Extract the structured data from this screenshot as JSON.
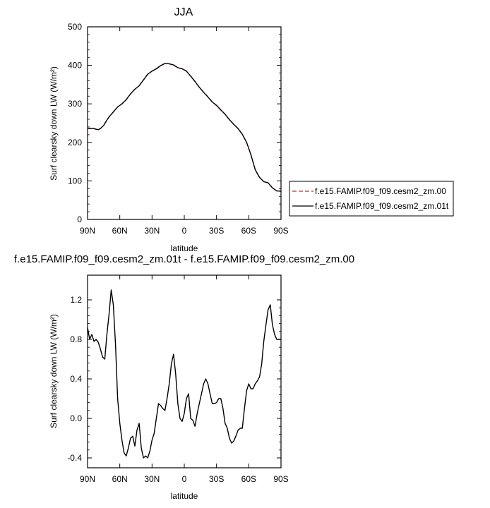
{
  "chart_data": [
    {
      "type": "line",
      "title": "JJA",
      "xlabel": "latitude",
      "ylabel": "Surf clearsky down LW (W/m²)",
      "xlim": [
        90,
        -90
      ],
      "ylim": [
        0,
        500
      ],
      "x_tick_values": [
        90,
        60,
        30,
        0,
        -30,
        -60,
        -90
      ],
      "x_tick_labels": [
        "90N",
        "60N",
        "30N",
        "0",
        "30S",
        "60S",
        "90S"
      ],
      "y_tick_values": [
        0,
        100,
        200,
        300,
        400,
        500
      ],
      "y_tick_labels": [
        "0",
        "100",
        "200",
        "300",
        "400",
        "500"
      ],
      "legend_position": "right",
      "series": [
        {
          "name": "f.e15.FAMIP.f09_f09.cesm2_zm.00",
          "color": "#d62728",
          "style": "dashed",
          "x": [
            90,
            85,
            80,
            78,
            75,
            72,
            70,
            66,
            62,
            58,
            54,
            50,
            46,
            42,
            38,
            34,
            30,
            26,
            22,
            18,
            14,
            10,
            6,
            2,
            -2,
            -6,
            -10,
            -14,
            -18,
            -22,
            -26,
            -30,
            -34,
            -38,
            -42,
            -46,
            -50,
            -54,
            -58,
            -62,
            -66,
            -70,
            -74,
            -78,
            -82,
            -86,
            -90
          ],
          "y": [
            236,
            236,
            233,
            236,
            244,
            258,
            266,
            279,
            292,
            300,
            311,
            326,
            338,
            347,
            362,
            377,
            385,
            391,
            399,
            405,
            404,
            401,
            394,
            391,
            385,
            372,
            358,
            343,
            330,
            318,
            305,
            296,
            284,
            273,
            259,
            247,
            236,
            221,
            200,
            168,
            129,
            109,
            98,
            95,
            82,
            74,
            73
          ]
        },
        {
          "name": "f.e15.FAMIP.f09_f09.cesm2_zm.01t",
          "color": "#000000",
          "style": "solid",
          "x": [
            90,
            85,
            80,
            78,
            75,
            72,
            70,
            66,
            62,
            58,
            54,
            50,
            46,
            42,
            38,
            34,
            30,
            26,
            22,
            18,
            14,
            10,
            6,
            2,
            -2,
            -6,
            -10,
            -14,
            -18,
            -22,
            -26,
            -30,
            -34,
            -38,
            -42,
            -46,
            -50,
            -54,
            -58,
            -62,
            -66,
            -70,
            -74,
            -78,
            -82,
            -86,
            -90
          ],
          "y": [
            236,
            236,
            233,
            236,
            244,
            258,
            266,
            279,
            292,
            300,
            311,
            326,
            338,
            347,
            362,
            377,
            385,
            391,
            399,
            405,
            404,
            401,
            394,
            391,
            385,
            372,
            358,
            343,
            330,
            318,
            305,
            296,
            284,
            273,
            259,
            247,
            236,
            221,
            200,
            168,
            129,
            109,
            98,
            95,
            82,
            74,
            73
          ]
        }
      ]
    },
    {
      "type": "line",
      "title": "f.e15.FAMIP.f09_f09.cesm2_zm.01t - f.e15.FAMIP.f09_f09.cesm2_zm.00",
      "xlabel": "latitude",
      "ylabel": "Surf clearsky down LW (W/m²)",
      "xlim": [
        90,
        -90
      ],
      "ylim": [
        -0.5,
        1.45
      ],
      "x_tick_values": [
        90,
        60,
        30,
        0,
        -30,
        -60,
        -90
      ],
      "x_tick_labels": [
        "90N",
        "60N",
        "30N",
        "0",
        "30S",
        "60S",
        "90S"
      ],
      "y_tick_values": [
        -0.4,
        0,
        0.4,
        0.8,
        1.2
      ],
      "y_tick_labels": [
        "-0.4",
        "0.0",
        "0.4",
        "0.8",
        "1.2"
      ],
      "series": [
        {
          "color": "#000000",
          "style": "solid",
          "x": [
            90,
            88,
            86,
            84,
            82,
            80,
            78,
            76,
            74,
            72,
            70,
            68,
            66,
            64,
            62,
            60,
            58,
            56,
            54,
            52,
            50,
            48,
            46,
            44,
            42,
            40,
            38,
            36,
            34,
            32,
            30,
            28,
            26,
            24,
            22,
            20,
            18,
            16,
            14,
            12,
            10,
            8,
            6,
            4,
            2,
            0,
            -2,
            -4,
            -6,
            -8,
            -10,
            -12,
            -14,
            -16,
            -18,
            -20,
            -22,
            -24,
            -26,
            -28,
            -30,
            -32,
            -34,
            -36,
            -38,
            -40,
            -42,
            -44,
            -46,
            -48,
            -50,
            -52,
            -54,
            -56,
            -58,
            -60,
            -62,
            -64,
            -66,
            -68,
            -70,
            -72,
            -74,
            -76,
            -78,
            -80,
            -82,
            -84,
            -86,
            -88,
            -90
          ],
          "y": [
            0.92,
            0.8,
            0.85,
            0.78,
            0.8,
            0.77,
            0.7,
            0.62,
            0.6,
            0.85,
            1.05,
            1.3,
            1.15,
            0.75,
            0.2,
            -0.05,
            -0.22,
            -0.35,
            -0.38,
            -0.3,
            -0.2,
            -0.18,
            -0.28,
            -0.12,
            -0.05,
            -0.3,
            -0.4,
            -0.38,
            -0.4,
            -0.33,
            -0.22,
            -0.15,
            0.0,
            0.15,
            0.13,
            0.1,
            0.08,
            0.2,
            0.35,
            0.55,
            0.65,
            0.45,
            0.15,
            0.0,
            -0.03,
            0.05,
            0.2,
            0.25,
            0.0,
            -0.02,
            -0.08,
            0.05,
            0.15,
            0.25,
            0.35,
            0.4,
            0.35,
            0.25,
            0.15,
            0.15,
            0.16,
            0.2,
            0.2,
            0.1,
            -0.05,
            -0.1,
            -0.2,
            -0.25,
            -0.23,
            -0.18,
            -0.12,
            -0.1,
            -0.1,
            0.1,
            0.28,
            0.35,
            0.3,
            0.3,
            0.35,
            0.38,
            0.42,
            0.55,
            0.78,
            0.95,
            1.1,
            1.15,
            0.95,
            0.85,
            0.8,
            0.8,
            0.8
          ]
        }
      ]
    }
  ]
}
